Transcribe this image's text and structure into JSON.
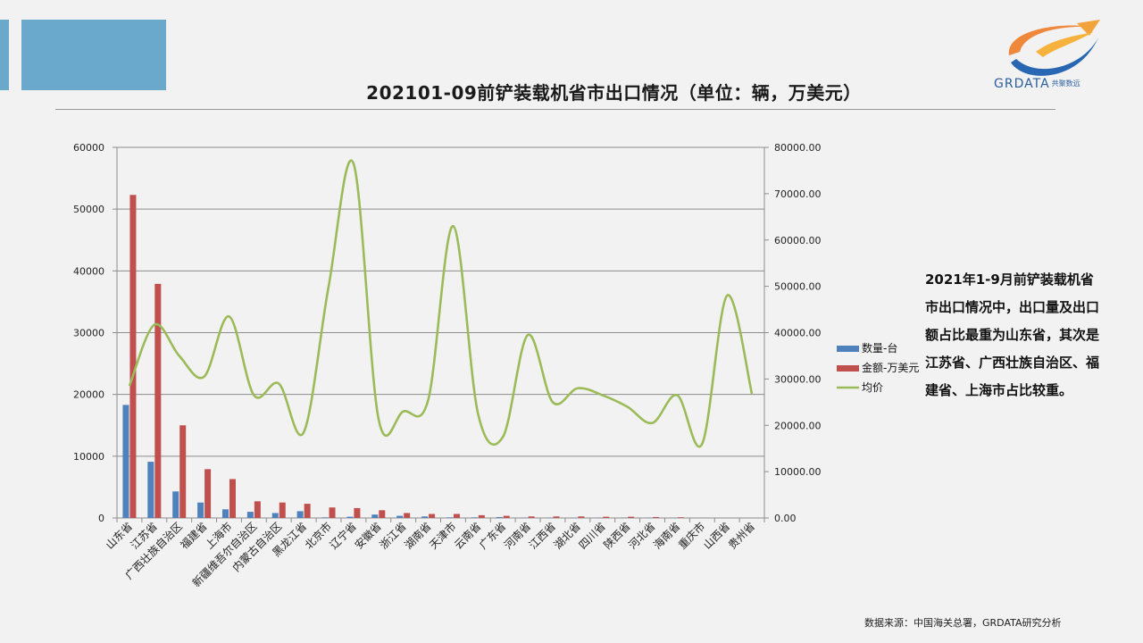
{
  "title": "202101-09前铲装载机省市出口情况（单位：辆，万美元）",
  "logo": {
    "text": "GRDATA",
    "subtext": "共聚数远"
  },
  "description": "2021年1-9月前铲装载机省市出口情况中，出口量及出口额占比最重为山东省，其次是江苏省、广西壮族自治区、福建省、上海市占比较重。",
  "source": "数据来源：中国海关总署，GRDATA研究分析",
  "colors": {
    "accent": "#6aa8cc",
    "quantity": "#4f81bd",
    "amount": "#c0504d",
    "avg_price": "#9bbb59"
  },
  "chart_data": {
    "type": "bar",
    "categories": [
      "山东省",
      "江苏省",
      "广西壮族自治区",
      "福建省",
      "上海市",
      "新疆维吾尔自治区",
      "内蒙古自治区",
      "黑龙江省",
      "北京市",
      "辽宁省",
      "安徽省",
      "浙江省",
      "湖南省",
      "天津市",
      "云南省",
      "广东省",
      "河南省",
      "江西省",
      "湖北省",
      "四川省",
      "陕西省",
      "河北省",
      "海南省",
      "重庆市",
      "山西省",
      "贵州省"
    ],
    "series": [
      {
        "name": "数量-台",
        "type": "bar",
        "axis": "left",
        "values": [
          18300,
          9100,
          4300,
          2500,
          1400,
          1000,
          800,
          1100,
          100,
          200,
          550,
          350,
          250,
          100,
          100,
          150,
          50,
          50,
          50,
          50,
          50,
          50,
          30,
          10,
          5,
          5
        ]
      },
      {
        "name": "金额-万美元",
        "type": "bar",
        "axis": "left",
        "values": [
          52300,
          37900,
          15000,
          7900,
          6300,
          2700,
          2500,
          2300,
          1700,
          1600,
          1250,
          800,
          650,
          650,
          450,
          350,
          250,
          250,
          250,
          200,
          200,
          150,
          120,
          20,
          15,
          15
        ]
      },
      {
        "name": "均价",
        "type": "line",
        "axis": "right",
        "values": [
          28500,
          41700,
          35000,
          30500,
          43500,
          26500,
          29000,
          18500,
          50000,
          76500,
          21500,
          23000,
          25500,
          63000,
          22500,
          17500,
          39500,
          25000,
          28000,
          26500,
          24000,
          20500,
          26500,
          16000,
          48000,
          26800
        ]
      }
    ],
    "y_left": {
      "min": 0,
      "max": 60000,
      "ticks": [
        "0",
        "10000",
        "20000",
        "30000",
        "40000",
        "50000",
        "60000"
      ]
    },
    "y_right": {
      "min": 0,
      "max": 80000,
      "ticks": [
        "0.00",
        "10000.00",
        "20000.00",
        "30000.00",
        "40000.00",
        "50000.00",
        "60000.00",
        "70000.00",
        "80000.00"
      ]
    },
    "grid": true,
    "legend": "right"
  }
}
